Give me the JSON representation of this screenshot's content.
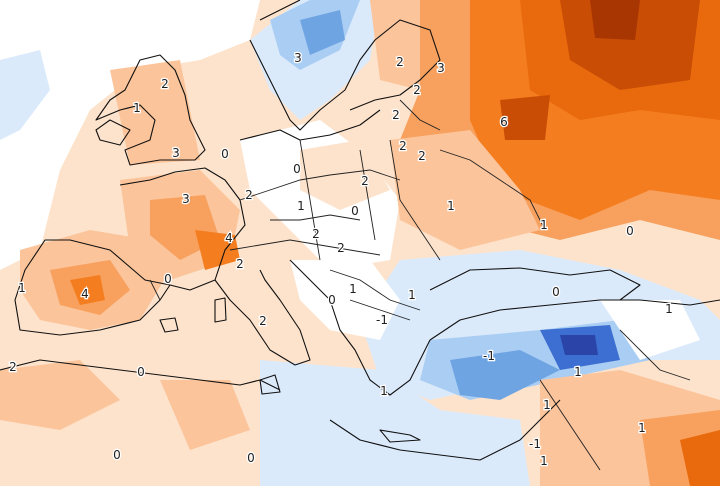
{
  "map": {
    "type": "temperature anomaly field (°C)",
    "region": "Europe",
    "colors": {
      "neutral": "#ffffff",
      "warm_1": "#fde3cc",
      "warm_2": "#fbc49a",
      "warm_3": "#f8a05e",
      "warm_4": "#f47d1f",
      "warm_5": "#e86a0c",
      "warm_6": "#c94d05",
      "warm_7": "#a83603",
      "cool_1": "#dbeafb",
      "cool_2": "#a9cdf3",
      "cool_3": "#6fa4e3",
      "cool_4": "#3c6fd1",
      "cool_5": "#2a44a8"
    },
    "labels": [
      "3",
      "2",
      "1",
      "3",
      "2",
      "3",
      "2",
      "2",
      "6",
      "2",
      "0",
      "2",
      "0",
      "2",
      "3",
      "2",
      "1",
      "0",
      "1",
      "2",
      "1",
      "0",
      "2",
      "4",
      "2",
      "4",
      "0",
      "2",
      "1",
      "2",
      "0",
      "1",
      "1",
      "-1",
      "0",
      "1",
      "-1",
      "1",
      "-1",
      "1",
      "1",
      "1",
      "0",
      "0",
      "0",
      "1"
    ]
  }
}
